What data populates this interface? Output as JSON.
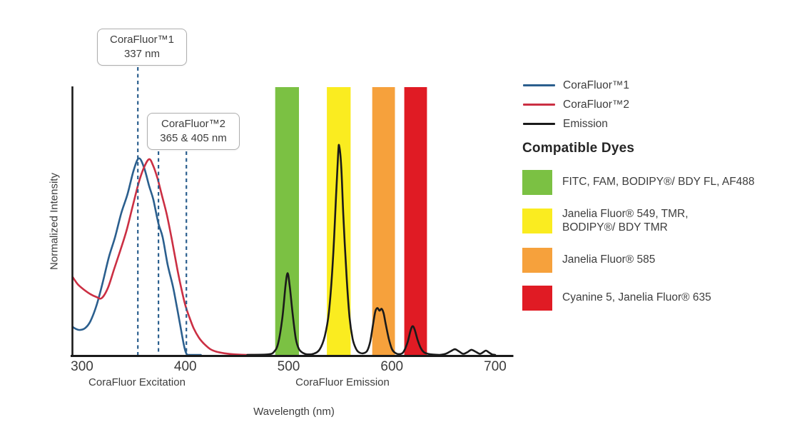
{
  "colors": {
    "blue": "#2B5F8E",
    "red": "#CB2F43",
    "black": "#1A1A1A",
    "green": "#7BC143",
    "yellow": "#FAEC20",
    "orange": "#F6A13C",
    "band_red": "#E01B24",
    "axis": "#1A1A1A",
    "text": "#3D3D3D"
  },
  "chart": {
    "y_axis_label": "Normalized Intensity",
    "x_axis_label": "Wavelength (nm)",
    "section_labels": {
      "excitation": "CoraFluor Excitation",
      "emission": "CoraFluor Emission"
    }
  },
  "legend": {
    "items": [
      {
        "label": "CoraFluor™1",
        "color_key": "blue"
      },
      {
        "label": "CoraFluor™2",
        "color_key": "red"
      },
      {
        "label": "Emission",
        "color_key": "black"
      }
    ]
  },
  "compatible_dyes": {
    "title": "Compatible Dyes",
    "items": [
      {
        "color_key": "green",
        "label": "FITC, FAM, BODIPY®/ BDY FL, AF488"
      },
      {
        "color_key": "yellow",
        "label": "Janelia Fluor® 549, TMR,\nBODIPY®/ BDY TMR"
      },
      {
        "color_key": "orange",
        "label": "Janelia Fluor® 585"
      },
      {
        "color_key": "band_red",
        "label": "Cyanine 5, Janelia Fluor® 635"
      }
    ]
  },
  "chart_data": {
    "type": "line",
    "title": "",
    "xlabel": "Wavelength (nm)",
    "ylabel": "Normalized Intensity",
    "xlim": [
      300,
      700
    ],
    "ylim": [
      0,
      1
    ],
    "x_ticks": [
      300,
      400,
      500,
      600,
      700
    ],
    "grid": false,
    "legend_position": "right",
    "annotations": [
      {
        "title": "CoraFluor™1",
        "subtitle": "337 nm",
        "lines_nm": [
          354
        ]
      },
      {
        "title": "CoraFluor™2",
        "subtitle": "365 & 405 nm",
        "lines_nm": [
          374,
          401
        ]
      }
    ],
    "filter_bands": [
      {
        "color_key": "green",
        "range_nm": [
          487,
          510
        ]
      },
      {
        "color_key": "yellow",
        "range_nm": [
          537,
          560
        ]
      },
      {
        "color_key": "orange",
        "range_nm": [
          581,
          603
        ]
      },
      {
        "color_key": "band_red",
        "range_nm": [
          612,
          634
        ]
      }
    ],
    "series": [
      {
        "name": "CoraFluor™1 excitation",
        "color_key": "blue",
        "points": [
          [
            291,
            0.104
          ],
          [
            294,
            0.097
          ],
          [
            298,
            0.093
          ],
          [
            303,
            0.1
          ],
          [
            308,
            0.125
          ],
          [
            314,
            0.185
          ],
          [
            320,
            0.27
          ],
          [
            326,
            0.365
          ],
          [
            332,
            0.44
          ],
          [
            338,
            0.53
          ],
          [
            344,
            0.6
          ],
          [
            350,
            0.69
          ],
          [
            355,
            0.734
          ],
          [
            360,
            0.7
          ],
          [
            365,
            0.63
          ],
          [
            369,
            0.58
          ],
          [
            374,
            0.49
          ],
          [
            378,
            0.44
          ],
          [
            383,
            0.335
          ],
          [
            388,
            0.255
          ],
          [
            392,
            0.175
          ],
          [
            396,
            0.09
          ],
          [
            399,
            0.03
          ],
          [
            401,
            0.005
          ],
          [
            403,
            0.0
          ],
          [
            415,
            0.0
          ]
        ]
      },
      {
        "name": "CoraFluor™2 excitation",
        "color_key": "red",
        "points": [
          [
            291,
            0.29
          ],
          [
            296,
            0.263
          ],
          [
            302,
            0.243
          ],
          [
            308,
            0.227
          ],
          [
            314,
            0.216
          ],
          [
            319,
            0.212
          ],
          [
            325,
            0.25
          ],
          [
            331,
            0.32
          ],
          [
            337,
            0.39
          ],
          [
            343,
            0.463
          ],
          [
            349,
            0.555
          ],
          [
            355,
            0.645
          ],
          [
            360,
            0.7
          ],
          [
            365,
            0.731
          ],
          [
            369,
            0.705
          ],
          [
            373,
            0.66
          ],
          [
            377,
            0.6
          ],
          [
            382,
            0.525
          ],
          [
            387,
            0.43
          ],
          [
            392,
            0.325
          ],
          [
            396,
            0.25
          ],
          [
            400,
            0.185
          ],
          [
            404,
            0.14
          ],
          [
            408,
            0.1
          ],
          [
            413,
            0.065
          ],
          [
            418,
            0.042
          ],
          [
            424,
            0.022
          ],
          [
            430,
            0.012
          ],
          [
            438,
            0.006
          ],
          [
            448,
            0.002
          ],
          [
            460,
            0.0
          ],
          [
            470,
            0.0
          ]
        ]
      },
      {
        "name": "Emission",
        "color_key": "black",
        "points": [
          [
            460,
            0.0
          ],
          [
            480,
            0.002
          ],
          [
            486,
            0.012
          ],
          [
            490,
            0.045
          ],
          [
            494,
            0.14
          ],
          [
            497,
            0.26
          ],
          [
            499,
            0.305
          ],
          [
            501,
            0.26
          ],
          [
            504,
            0.15
          ],
          [
            507,
            0.06
          ],
          [
            510,
            0.022
          ],
          [
            514,
            0.007
          ],
          [
            518,
            0.002
          ],
          [
            524,
            0.004
          ],
          [
            530,
            0.02
          ],
          [
            535,
            0.07
          ],
          [
            539,
            0.16
          ],
          [
            543,
            0.36
          ],
          [
            546,
            0.6
          ],
          [
            548,
            0.755
          ],
          [
            549,
            0.78
          ],
          [
            551,
            0.7
          ],
          [
            553,
            0.52
          ],
          [
            556,
            0.3
          ],
          [
            559,
            0.14
          ],
          [
            562,
            0.06
          ],
          [
            565,
            0.025
          ],
          [
            568,
            0.01
          ],
          [
            572,
            0.006
          ],
          [
            576,
            0.015
          ],
          [
            579,
            0.05
          ],
          [
            582,
            0.12
          ],
          [
            584,
            0.163
          ],
          [
            586,
            0.175
          ],
          [
            588,
            0.165
          ],
          [
            590,
            0.172
          ],
          [
            592,
            0.155
          ],
          [
            594,
            0.115
          ],
          [
            597,
            0.06
          ],
          [
            600,
            0.022
          ],
          [
            603,
            0.008
          ],
          [
            607,
            0.003
          ],
          [
            611,
            0.01
          ],
          [
            615,
            0.045
          ],
          [
            618,
            0.09
          ],
          [
            620,
            0.107
          ],
          [
            622,
            0.095
          ],
          [
            625,
            0.055
          ],
          [
            628,
            0.025
          ],
          [
            631,
            0.01
          ],
          [
            635,
            0.004
          ],
          [
            640,
            0.001
          ],
          [
            646,
            0.0
          ],
          [
            652,
            0.004
          ],
          [
            657,
            0.014
          ],
          [
            661,
            0.021
          ],
          [
            665,
            0.013
          ],
          [
            669,
            0.004
          ],
          [
            673,
            0.01
          ],
          [
            677,
            0.019
          ],
          [
            681,
            0.012
          ],
          [
            685,
            0.004
          ],
          [
            688,
            0.009
          ],
          [
            691,
            0.016
          ],
          [
            694,
            0.009
          ],
          [
            697,
            0.002
          ],
          [
            700,
            0.0
          ]
        ]
      }
    ]
  }
}
